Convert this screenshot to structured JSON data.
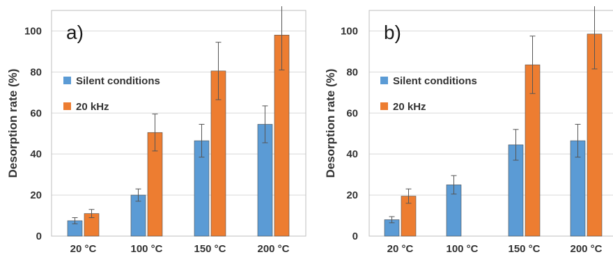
{
  "chart_data": [
    {
      "type": "bar",
      "panel_label": "a)",
      "ylabel": "Desorption rate (%)",
      "categories": [
        "20 °C",
        "100 °C",
        "150 °C",
        "200 °C"
      ],
      "ylim": [
        0,
        110
      ],
      "yticks": [
        0,
        20,
        40,
        60,
        80,
        100
      ],
      "grid": true,
      "legend_position": "left",
      "series": [
        {
          "name": "Silent conditions",
          "color": "#5b9bd5",
          "values": [
            7.5,
            20,
            46.5,
            54.5
          ],
          "errors": [
            1.5,
            3,
            8,
            9
          ]
        },
        {
          "name": "20 kHz",
          "color": "#ed7d31",
          "values": [
            11,
            50.5,
            80.5,
            98
          ],
          "errors": [
            2,
            9,
            14,
            17
          ]
        }
      ]
    },
    {
      "type": "bar",
      "panel_label": "b)",
      "ylabel": "Desorption rate (%)",
      "categories": [
        "20 °C",
        "100 °C",
        "150 °C",
        "200 °C"
      ],
      "ylim": [
        0,
        110
      ],
      "yticks": [
        0,
        20,
        40,
        60,
        80,
        100
      ],
      "grid": true,
      "legend_position": "left",
      "series": [
        {
          "name": "Silent conditions",
          "color": "#5b9bd5",
          "values": [
            8,
            25,
            44.5,
            46.5
          ],
          "errors": [
            1.5,
            4.5,
            7.5,
            8
          ]
        },
        {
          "name": "20 kHz",
          "color": "#ed7d31",
          "values": [
            19.5,
            null,
            83.5,
            98.5
          ],
          "errors": [
            3.5,
            null,
            14,
            17
          ]
        }
      ]
    }
  ]
}
